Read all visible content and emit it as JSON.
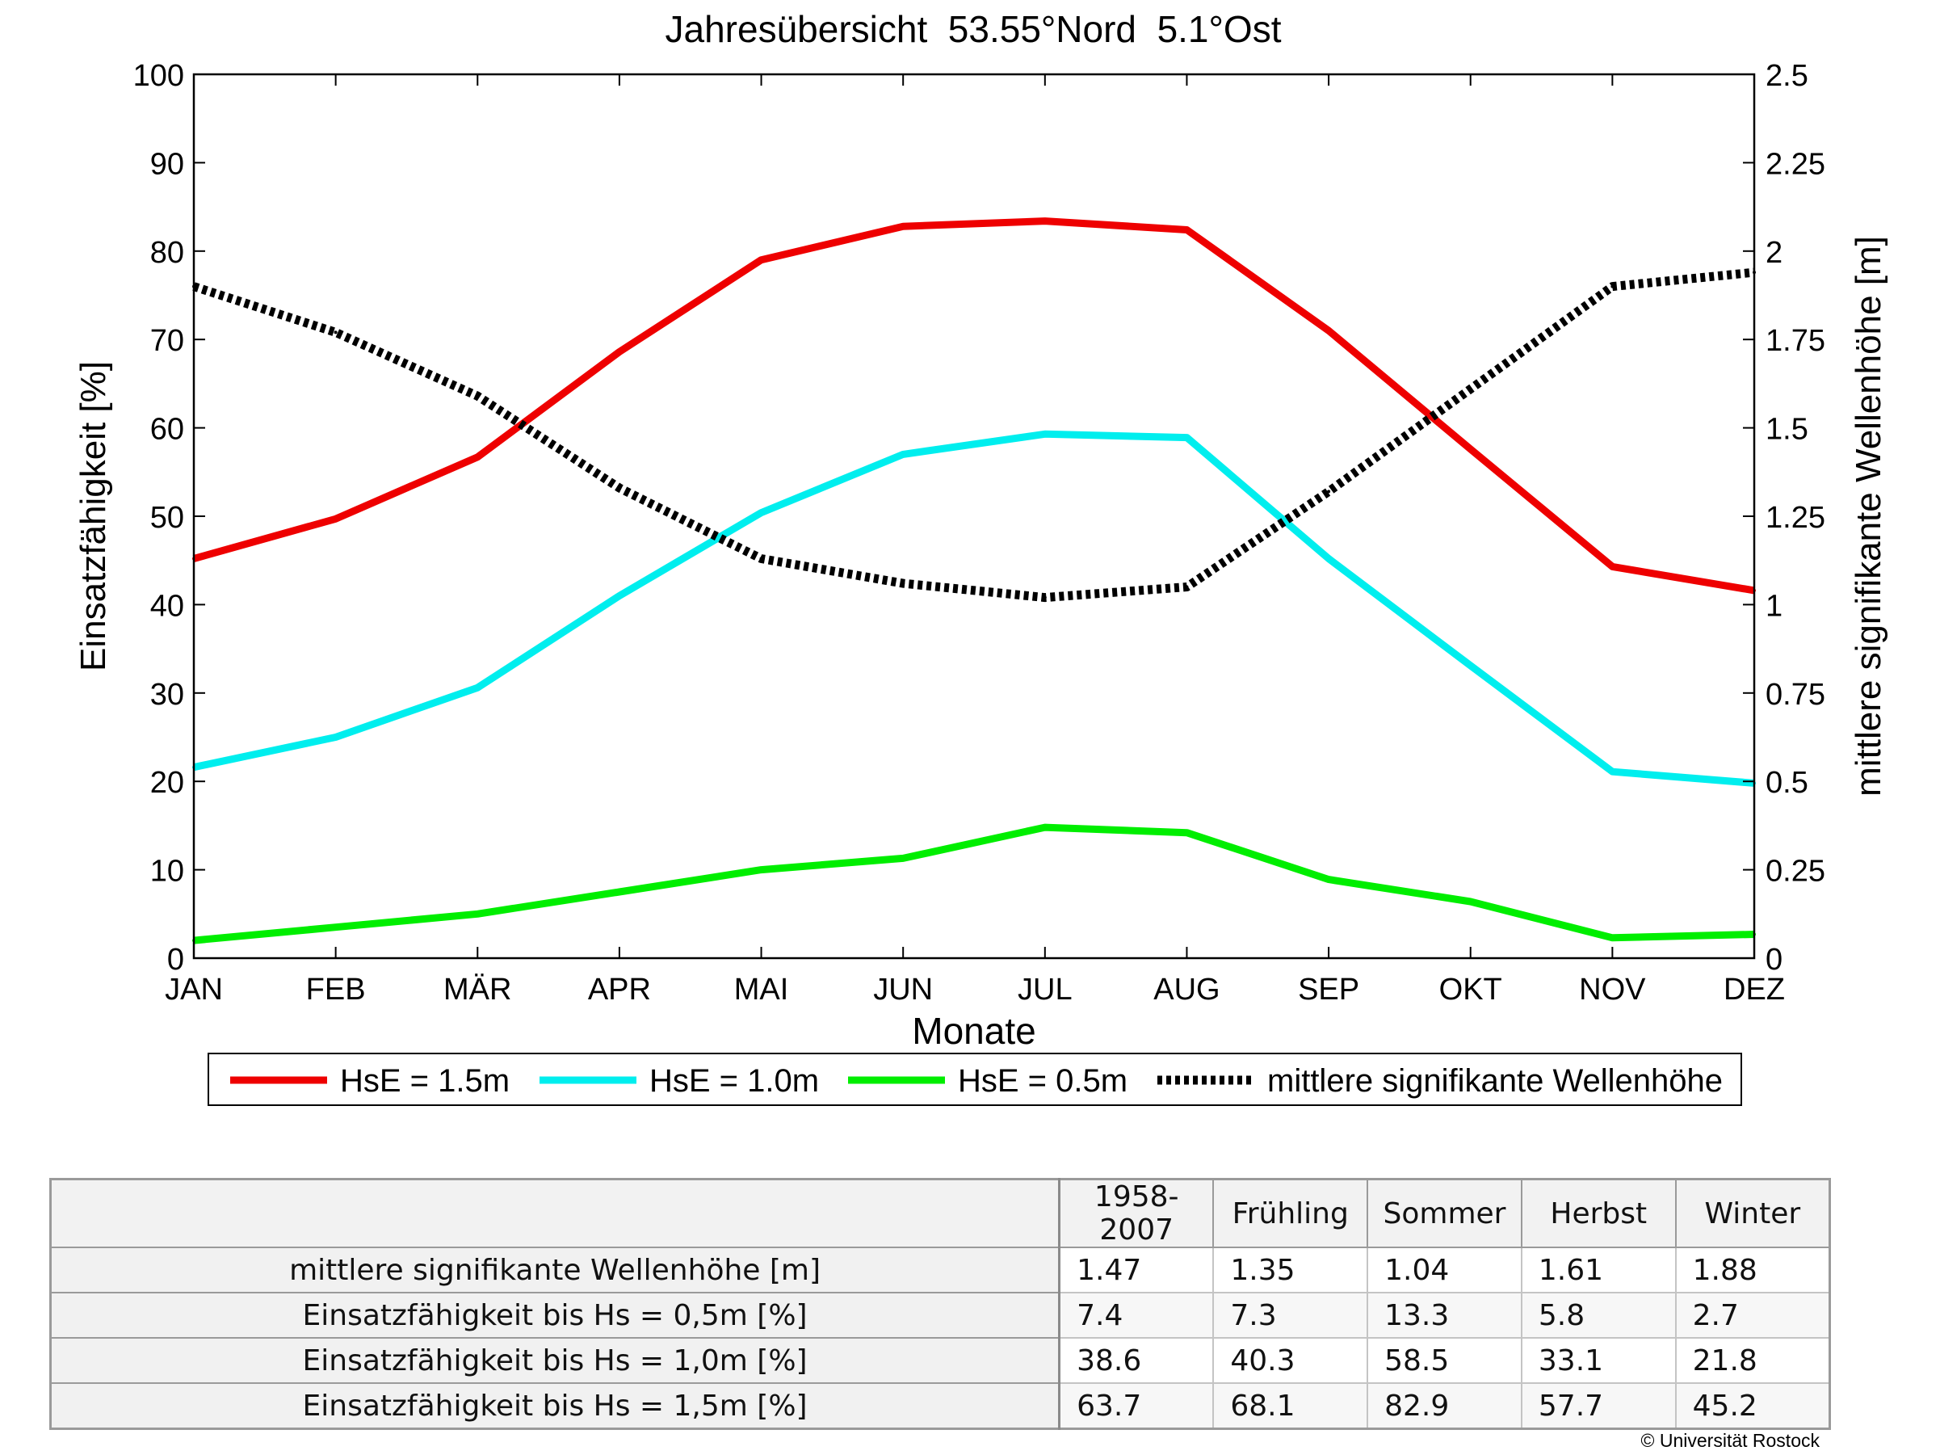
{
  "chart_data": {
    "type": "line",
    "title": "Jahresübersicht  53.55°Nord  5.1°Ost",
    "xlabel": "Monate",
    "ylabel_left": "Einsatzfähigkeit [%]",
    "ylabel_right": "mittlere signifikante Wellenhöhe [m]",
    "categories": [
      "JAN",
      "FEB",
      "MÄR",
      "APR",
      "MAI",
      "JUN",
      "JUL",
      "AUG",
      "SEP",
      "OKT",
      "NOV",
      "DEZ"
    ],
    "ylim_left": [
      0,
      100
    ],
    "ylim_right": [
      0,
      2.5
    ],
    "yticks_left": [
      "0",
      "10",
      "20",
      "30",
      "40",
      "50",
      "60",
      "70",
      "80",
      "90",
      "100"
    ],
    "yticks_right": [
      "0",
      "0.25",
      "0.5",
      "0.75",
      "1",
      "1.25",
      "1.5",
      "1.75",
      "2",
      "2.25",
      "2.5"
    ],
    "grid": false,
    "legend_position": "bottom",
    "series": [
      {
        "name": "HsE = 1.5m",
        "axis": "left",
        "color": "#ee0000",
        "style": "solid",
        "values": [
          45.2,
          49.7,
          56.7,
          68.6,
          79.0,
          82.8,
          83.4,
          82.4,
          71.0,
          57.6,
          44.3,
          41.6
        ]
      },
      {
        "name": "HsE = 1.0m",
        "axis": "left",
        "color": "#00eeee",
        "style": "solid",
        "values": [
          21.6,
          25.0,
          30.6,
          41.0,
          50.4,
          57.0,
          59.3,
          58.9,
          45.2,
          33.1,
          21.1,
          19.8
        ]
      },
      {
        "name": "HsE = 0.5m",
        "axis": "left",
        "color": "#00ee00",
        "style": "solid",
        "values": [
          2.0,
          3.5,
          5.0,
          7.5,
          10.0,
          11.3,
          14.8,
          14.2,
          8.9,
          6.4,
          2.3,
          2.7
        ]
      },
      {
        "name": "mittlere signifikante Wellenhöhe",
        "axis": "right",
        "color": "#000000",
        "style": "dotted",
        "values": [
          1.9,
          1.77,
          1.59,
          1.33,
          1.13,
          1.06,
          1.02,
          1.05,
          1.32,
          1.61,
          1.9,
          1.94
        ]
      }
    ]
  },
  "table": {
    "columns": [
      "1958-2007",
      "Frühling",
      "Sommer",
      "Herbst",
      "Winter"
    ],
    "rows": [
      {
        "label": "mittlere signifikante Wellenhöhe [m]",
        "values": [
          "1.47",
          "1.35",
          "1.04",
          "1.61",
          "1.88"
        ]
      },
      {
        "label": "Einsatzfähigkeit bis Hs = 0,5m [%]",
        "values": [
          "7.4",
          "7.3",
          "13.3",
          "5.8",
          "2.7"
        ]
      },
      {
        "label": "Einsatzfähigkeit bis Hs = 1,0m [%]",
        "values": [
          "38.6",
          "40.3",
          "58.5",
          "33.1",
          "21.8"
        ]
      },
      {
        "label": "Einsatzfähigkeit bis Hs = 1,5m [%]",
        "values": [
          "63.7",
          "68.1",
          "82.9",
          "57.7",
          "45.2"
        ]
      }
    ]
  },
  "copyright": "© Universität Rostock"
}
